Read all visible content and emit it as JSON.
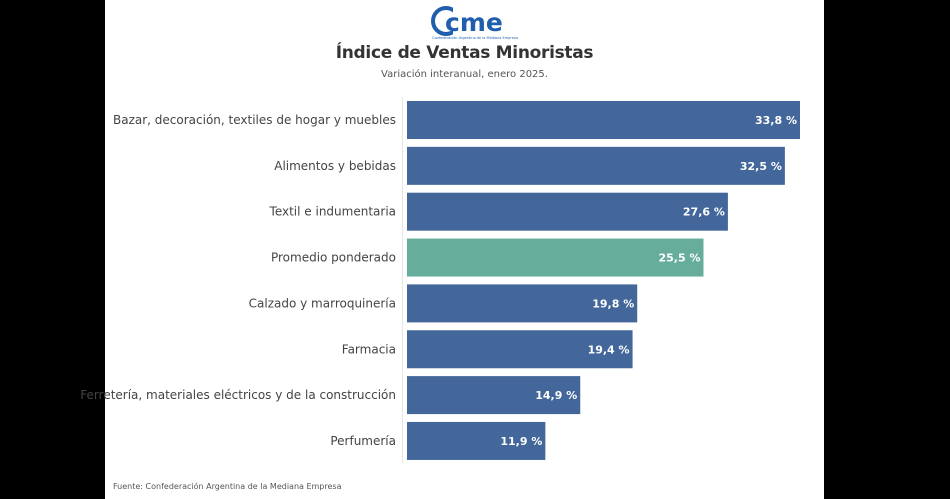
{
  "header": {
    "logo_text": "cme",
    "logo_subtitle": "Confederación Argentina de la Mediana Empresa"
  },
  "chart_data": {
    "type": "bar",
    "orientation": "horizontal",
    "title": "Índice de Ventas Minoristas",
    "subtitle": "Variación interanual, enero 2025.",
    "categories": [
      "Bazar, decoración, textiles de hogar y muebles",
      "Alimentos y bebidas",
      "Textil e indumentaria",
      "Promedio ponderado",
      "Calzado y marroquinería",
      "Farmacia",
      "Ferretería, materiales eléctricos y de la construcción",
      "Perfumería"
    ],
    "values": [
      33.8,
      32.5,
      27.6,
      25.5,
      19.8,
      19.4,
      14.9,
      11.9
    ],
    "value_labels": [
      "33,8 %",
      "32,5 %",
      "27,6 %",
      "25,5 %",
      "19,8 %",
      "19,4 %",
      "14,9 %",
      "11,9 %"
    ],
    "highlight_index": 3,
    "colors": {
      "default": "#44679b",
      "highlight": "#66ae9b"
    },
    "xlim": [
      0,
      33.8
    ],
    "grid": false,
    "xlabel": "",
    "ylabel": ""
  },
  "footer": {
    "source": "Fuente: Confederación Argentina de la Mediana Empresa"
  }
}
